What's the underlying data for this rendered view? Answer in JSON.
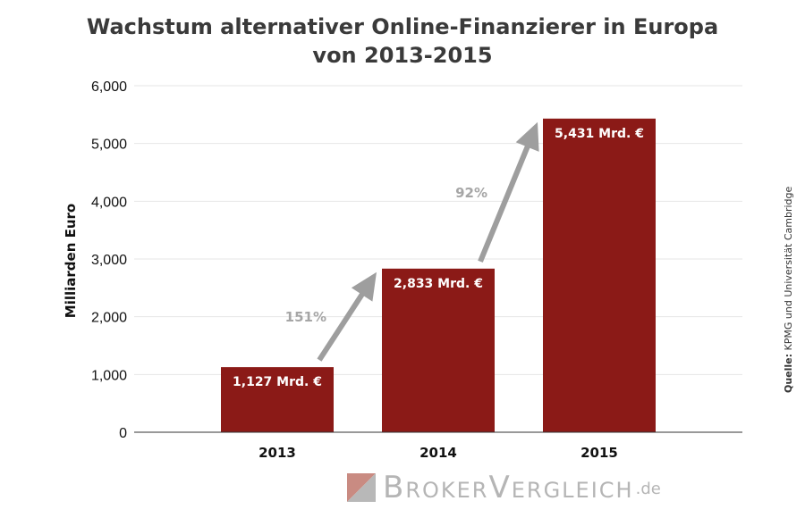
{
  "chart_data": {
    "type": "bar",
    "title": [
      "Wachstum alternativer Online-Finanzierer in Europa",
      "von 2013-2015"
    ],
    "ylabel": "Milliarden Euro",
    "xlabel": "",
    "categories": [
      "2013",
      "2014",
      "2015"
    ],
    "values": [
      1127,
      2833,
      5431
    ],
    "data_labels": [
      "1,127 Mrd. €",
      "2,833 Mrd. €",
      "5,431 Mrd. €"
    ],
    "ylim": [
      0,
      6000
    ],
    "yticks": [
      0,
      1000,
      2000,
      3000,
      4000,
      5000,
      6000
    ],
    "ytick_labels": [
      "0",
      "1,000",
      "2,000",
      "3,000",
      "4,000",
      "5,000",
      "6,000"
    ],
    "grid": true,
    "bar_color": "#8b1a17",
    "annotations": [
      {
        "text": "151%",
        "from": "2013",
        "to": "2014"
      },
      {
        "text": "92%",
        "from": "2014",
        "to": "2015"
      }
    ],
    "arrow_color": "#9e9e9e"
  },
  "source": {
    "label": "Quelle:",
    "text": "KPMG und Universität Cambridge"
  },
  "brand": {
    "name": "BrokerVergleich",
    "tld": ".de"
  }
}
